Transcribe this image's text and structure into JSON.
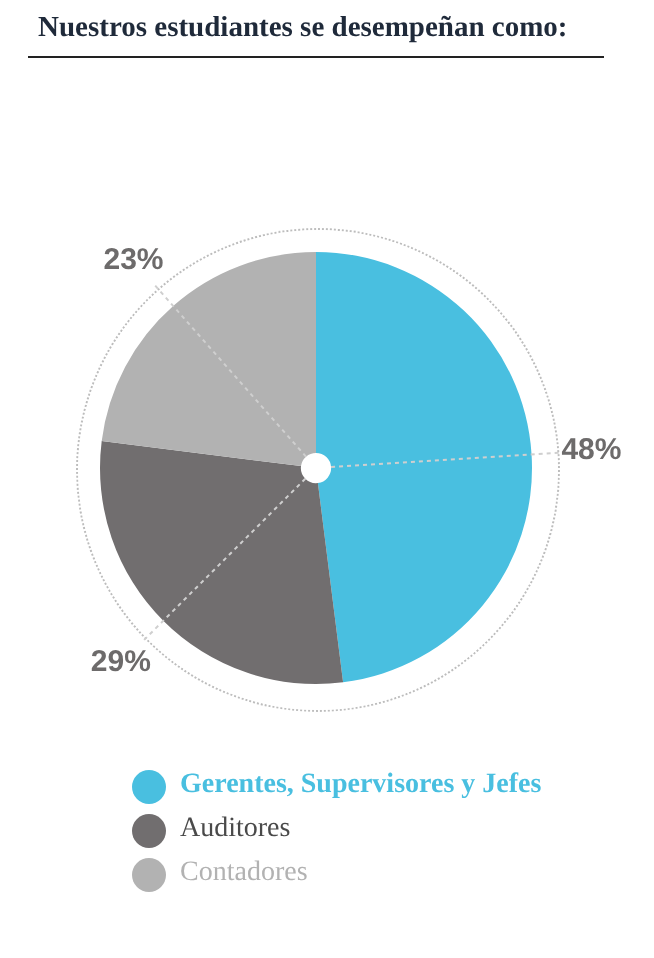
{
  "chart_data": {
    "type": "pie",
    "title": "Nuestros estudiantes se desempeñan como:",
    "categories": [
      "Gerentes, Supervisores y Jefes",
      "Auditores",
      "Contadores"
    ],
    "values": [
      48,
      29,
      23
    ],
    "colors": [
      "#49bfe0",
      "#716e6f",
      "#b2b2b2"
    ],
    "value_labels": [
      "48%",
      "29%",
      "23%"
    ],
    "legend": "bottom"
  }
}
